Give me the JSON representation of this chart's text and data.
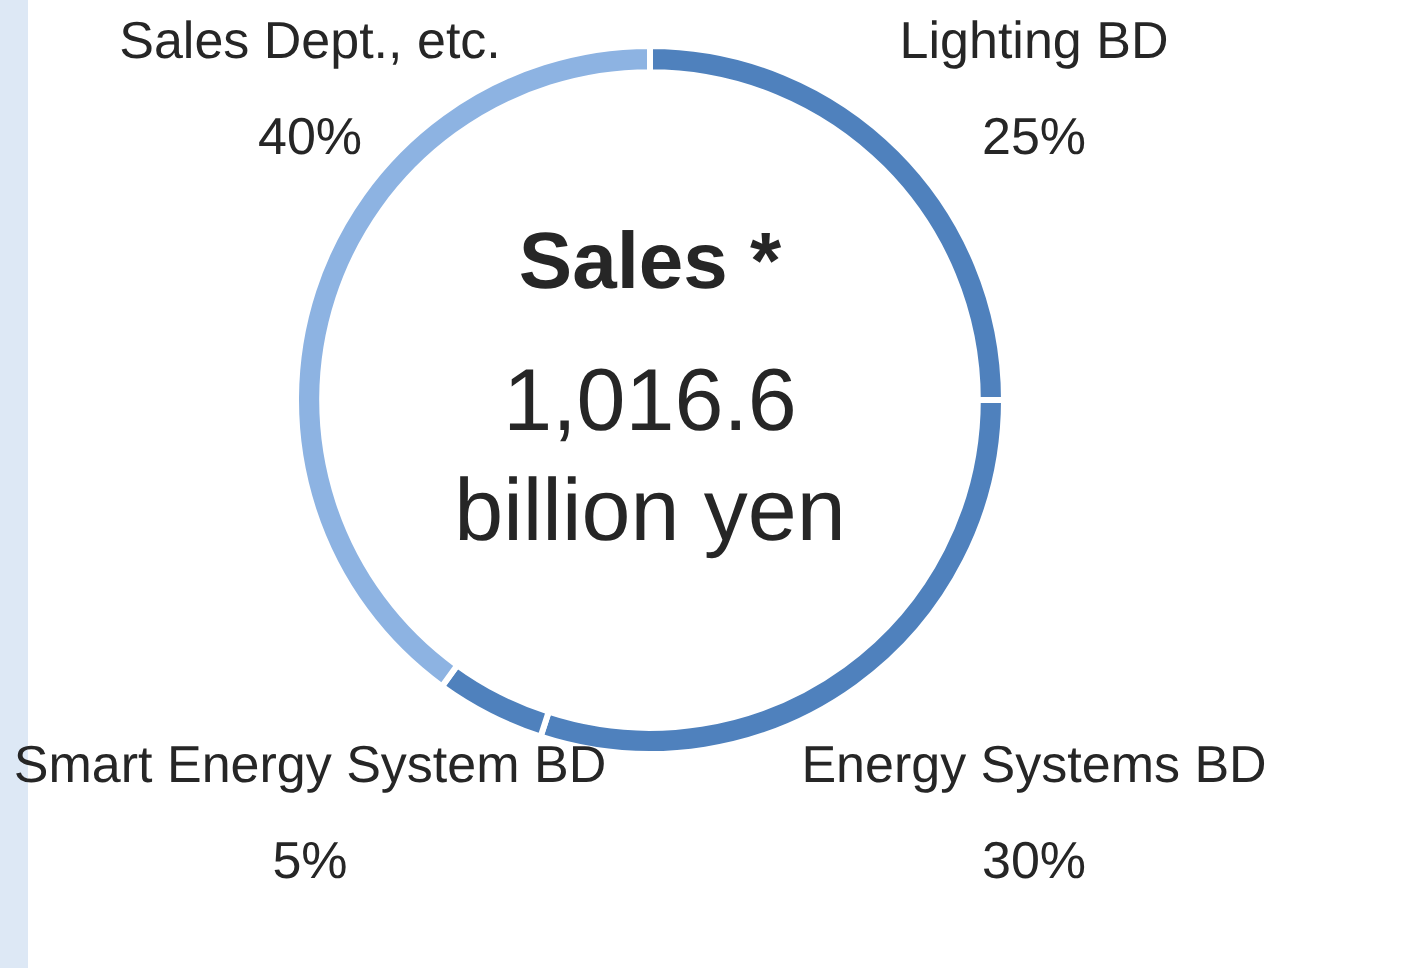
{
  "chart_data": {
    "type": "donut",
    "title": "Sales *",
    "annotations": [
      "1,016.6",
      "billion yen"
    ],
    "categories": [
      "Lighting BD",
      "Energy Systems BD",
      "Smart Energy System BD",
      "Sales Dept., etc."
    ],
    "values": [
      25,
      30,
      5,
      40
    ],
    "value_labels": [
      "25%",
      "30%",
      "5%",
      "40%"
    ],
    "colors": [
      "#4f81bd",
      "#4f81bd",
      "#4f81bd",
      "#8db3e2"
    ],
    "legend": false
  }
}
